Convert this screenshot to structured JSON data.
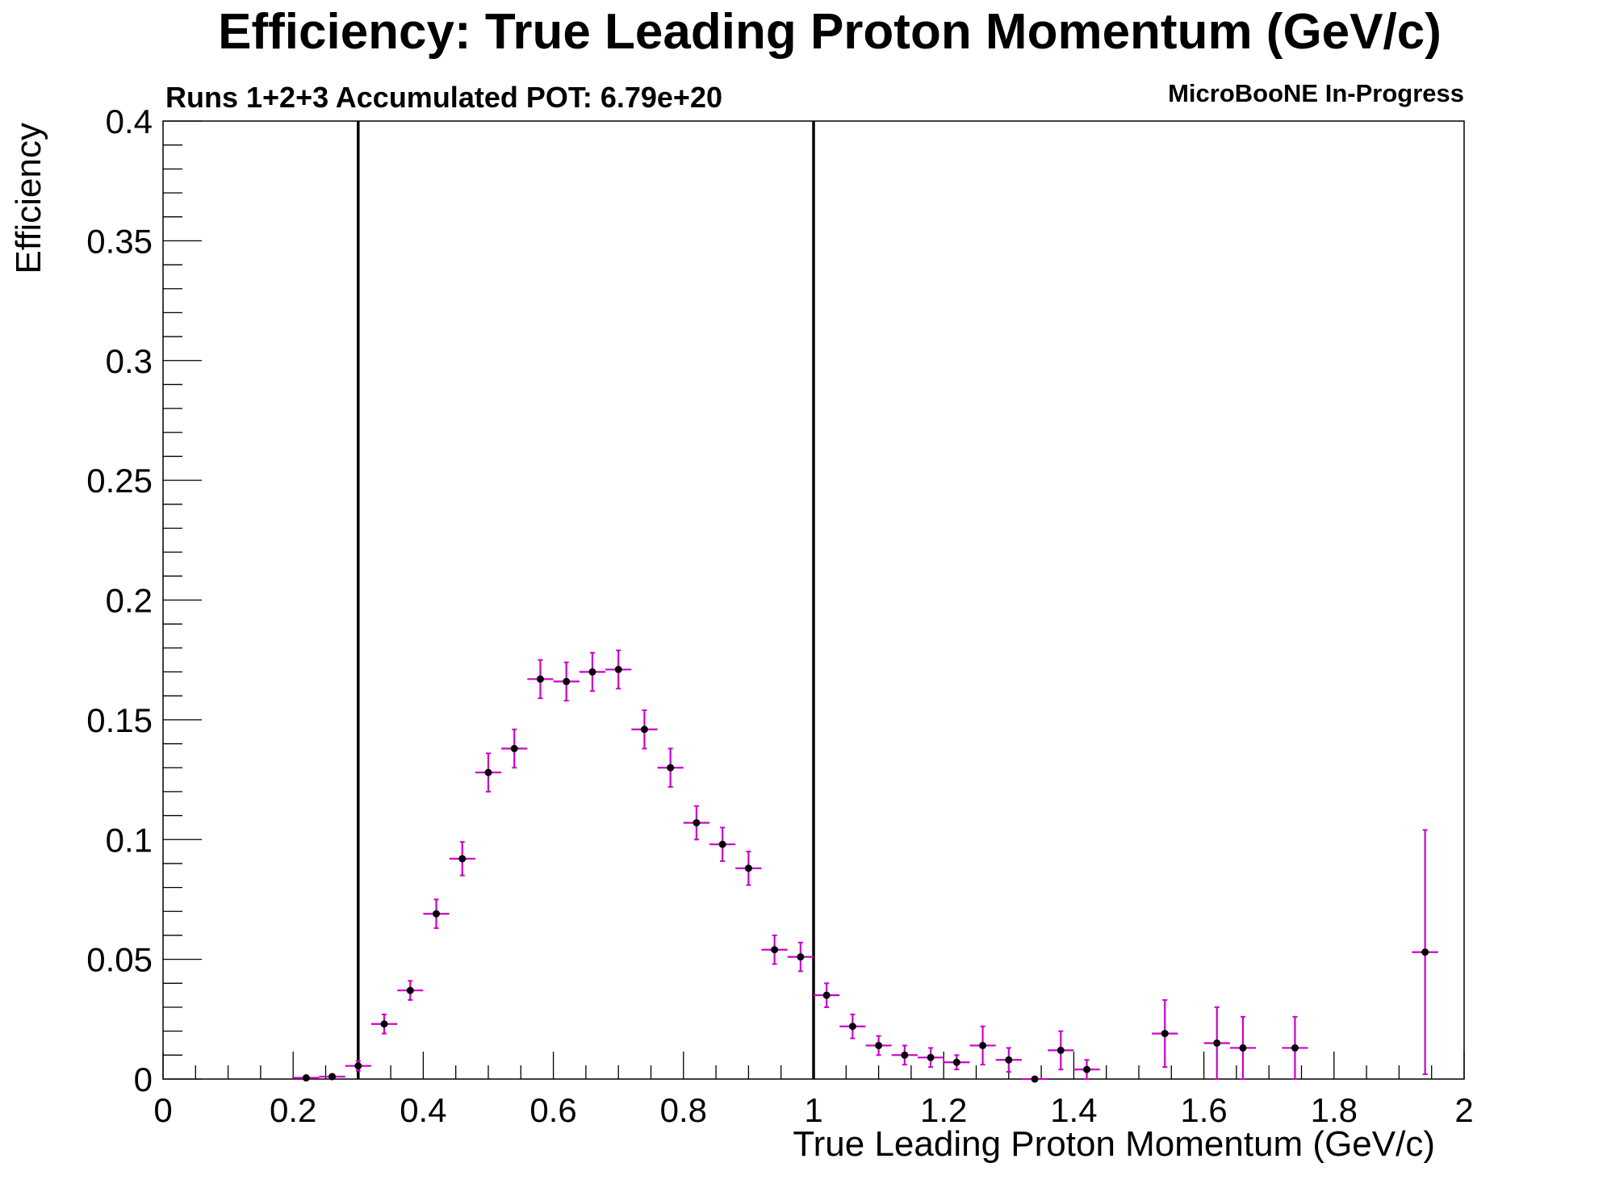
{
  "chart_data": {
    "type": "scatter",
    "title": "Efficiency: True Leading Proton Momentum (GeV/c)",
    "subtitle_left": "Runs 1+2+3 Accumulated POT: 6.79e+20",
    "subtitle_right": "MicroBooNE In-Progress",
    "xlabel": "True Leading Proton Momentum (GeV/c)",
    "ylabel": "Efficiency",
    "xlim": [
      0,
      2
    ],
    "ylim": [
      0,
      0.4
    ],
    "xticks": [
      0,
      0.2,
      0.4,
      0.6,
      0.8,
      1.0,
      1.2,
      1.4,
      1.6,
      1.8,
      2.0
    ],
    "xtick_labels": [
      "0",
      "0.2",
      "0.4",
      "0.6",
      "0.8",
      "1",
      "1.2",
      "1.4",
      "1.6",
      "1.8",
      "2"
    ],
    "yticks": [
      0,
      0.05,
      0.1,
      0.15,
      0.2,
      0.25,
      0.3,
      0.35,
      0.4
    ],
    "ytick_labels": [
      "0",
      "0.05",
      "0.1",
      "0.15",
      "0.2",
      "0.25",
      "0.3",
      "0.35",
      "0.4"
    ],
    "vertical_lines": [
      0.3,
      1.0
    ],
    "grid": false,
    "error_bar_color": "#cc00cc",
    "marker_color": "#000000",
    "series": [
      {
        "points": [
          {
            "x": 0.22,
            "y": 0.0005,
            "xerr": 0.02,
            "yerr": 0.0005
          },
          {
            "x": 0.26,
            "y": 0.001,
            "xerr": 0.02,
            "yerr": 0.001
          },
          {
            "x": 0.3,
            "y": 0.0055,
            "xerr": 0.02,
            "yerr": 0.002
          },
          {
            "x": 0.34,
            "y": 0.023,
            "xerr": 0.02,
            "yerr": 0.004
          },
          {
            "x": 0.38,
            "y": 0.037,
            "xerr": 0.02,
            "yerr": 0.004
          },
          {
            "x": 0.42,
            "y": 0.069,
            "xerr": 0.02,
            "yerr": 0.006
          },
          {
            "x": 0.46,
            "y": 0.092,
            "xerr": 0.02,
            "yerr": 0.007
          },
          {
            "x": 0.5,
            "y": 0.128,
            "xerr": 0.02,
            "yerr": 0.008
          },
          {
            "x": 0.54,
            "y": 0.138,
            "xerr": 0.02,
            "yerr": 0.008
          },
          {
            "x": 0.58,
            "y": 0.167,
            "xerr": 0.02,
            "yerr": 0.008
          },
          {
            "x": 0.62,
            "y": 0.166,
            "xerr": 0.02,
            "yerr": 0.008
          },
          {
            "x": 0.66,
            "y": 0.17,
            "xerr": 0.02,
            "yerr": 0.008
          },
          {
            "x": 0.7,
            "y": 0.171,
            "xerr": 0.02,
            "yerr": 0.008
          },
          {
            "x": 0.74,
            "y": 0.146,
            "xerr": 0.02,
            "yerr": 0.008
          },
          {
            "x": 0.78,
            "y": 0.13,
            "xerr": 0.02,
            "yerr": 0.008
          },
          {
            "x": 0.82,
            "y": 0.107,
            "xerr": 0.02,
            "yerr": 0.007
          },
          {
            "x": 0.86,
            "y": 0.098,
            "xerr": 0.02,
            "yerr": 0.007
          },
          {
            "x": 0.9,
            "y": 0.088,
            "xerr": 0.02,
            "yerr": 0.007
          },
          {
            "x": 0.94,
            "y": 0.054,
            "xerr": 0.02,
            "yerr": 0.006
          },
          {
            "x": 0.98,
            "y": 0.051,
            "xerr": 0.02,
            "yerr": 0.006
          },
          {
            "x": 1.02,
            "y": 0.035,
            "xerr": 0.02,
            "yerr": 0.005
          },
          {
            "x": 1.06,
            "y": 0.022,
            "xerr": 0.02,
            "yerr": 0.005
          },
          {
            "x": 1.1,
            "y": 0.014,
            "xerr": 0.02,
            "yerr": 0.004
          },
          {
            "x": 1.14,
            "y": 0.01,
            "xerr": 0.02,
            "yerr": 0.004
          },
          {
            "x": 1.18,
            "y": 0.009,
            "xerr": 0.02,
            "yerr": 0.004
          },
          {
            "x": 1.22,
            "y": 0.007,
            "xerr": 0.02,
            "yerr": 0.003
          },
          {
            "x": 1.26,
            "y": 0.014,
            "xerr": 0.02,
            "yerr": 0.008
          },
          {
            "x": 1.3,
            "y": 0.008,
            "xerr": 0.02,
            "yerr": 0.005
          },
          {
            "x": 1.34,
            "y": 0.0,
            "xerr": 0.02,
            "yerr": 0.0
          },
          {
            "x": 1.38,
            "y": 0.012,
            "xerr": 0.02,
            "yerr": 0.008
          },
          {
            "x": 1.42,
            "y": 0.004,
            "xerr": 0.02,
            "yerr": 0.004
          },
          {
            "x": 1.54,
            "y": 0.019,
            "xerr": 0.02,
            "yerr": 0.014
          },
          {
            "x": 1.62,
            "y": 0.015,
            "xerr": 0.02,
            "yerr": 0.015
          },
          {
            "x": 1.66,
            "y": 0.013,
            "xerr": 0.02,
            "yerr": 0.013
          },
          {
            "x": 1.74,
            "y": 0.013,
            "xerr": 0.02,
            "yerr": 0.013
          },
          {
            "x": 1.94,
            "y": 0.053,
            "xerr": 0.02,
            "yerr": 0.051
          }
        ]
      }
    ]
  }
}
